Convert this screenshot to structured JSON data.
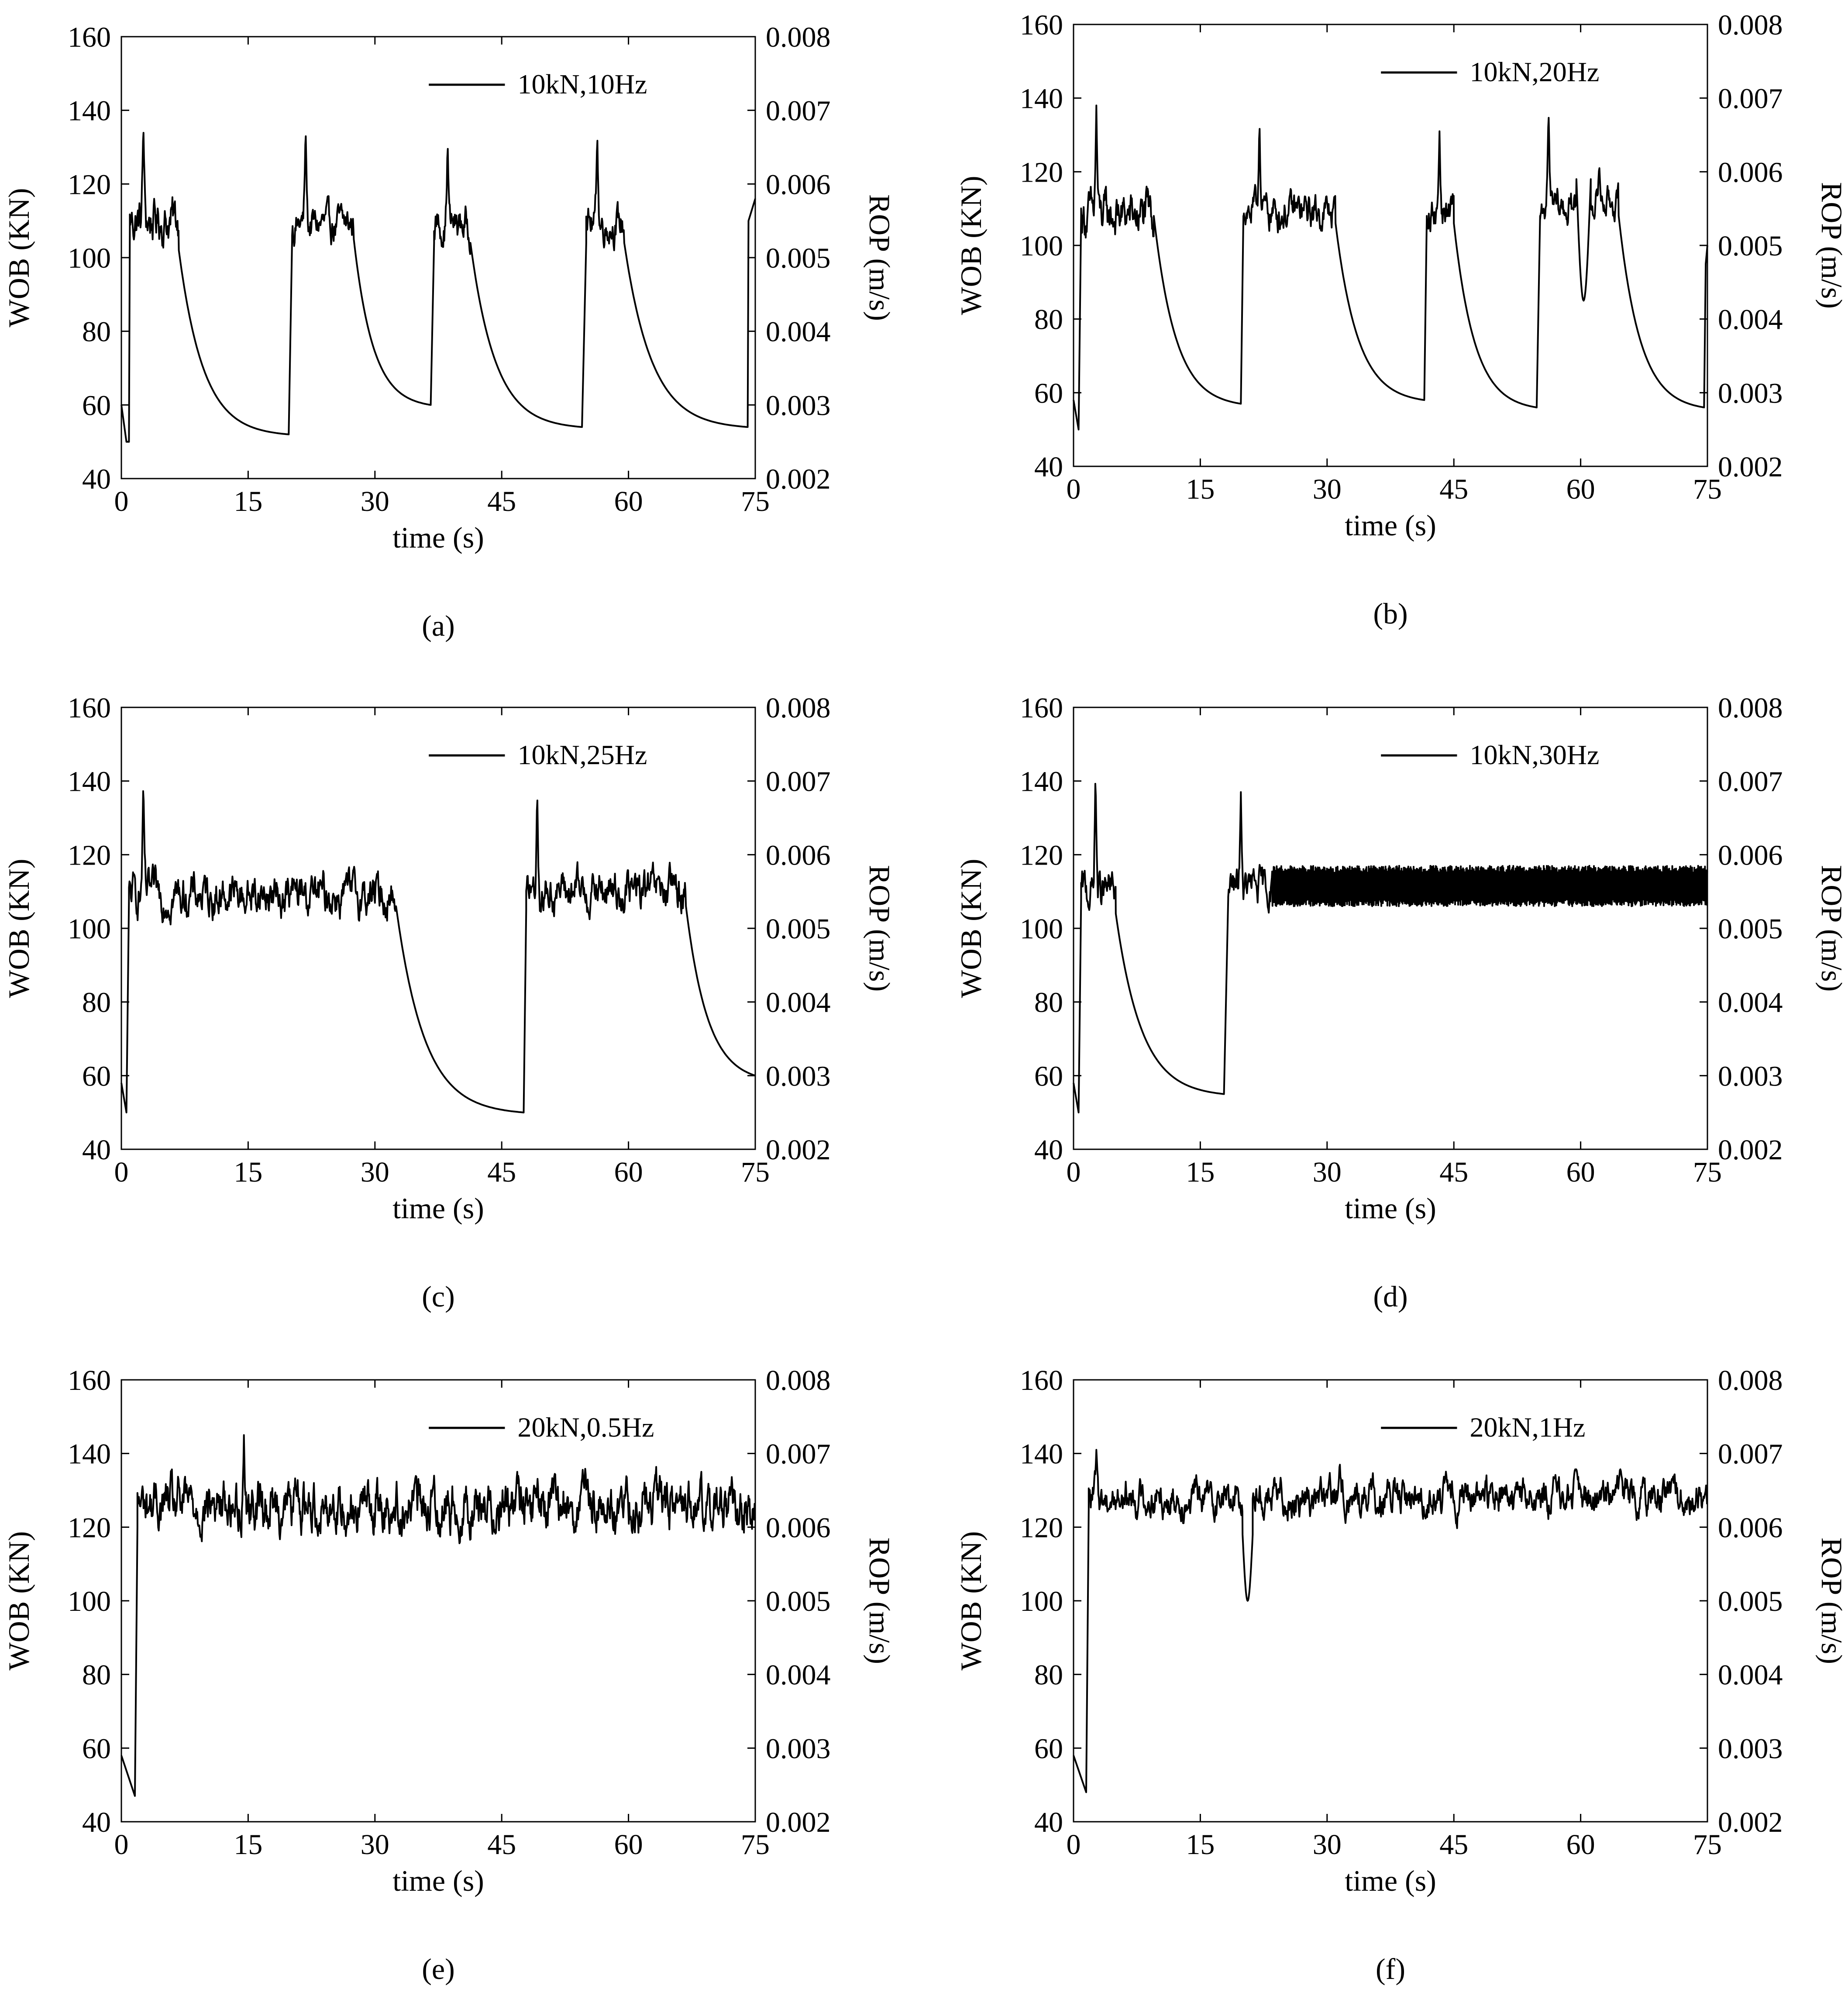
{
  "chart_data": [
    {
      "type": "line",
      "panel_label": "(a)",
      "legend": "10kN,10Hz",
      "xlabel": "time (s)",
      "ylabel": "WOB (KN)",
      "ylabel_right": "ROP (m/s)",
      "xlim": [
        0,
        75
      ],
      "ylim": [
        40,
        160
      ],
      "ylim_right": [
        0.002,
        0.008
      ],
      "x_ticks": [
        "0",
        "15",
        "30",
        "45",
        "60",
        "75"
      ],
      "y_ticks": [
        "40",
        "60",
        "80",
        "100",
        "120",
        "140",
        "160"
      ],
      "y_right_ticks": [
        "0.002",
        "0.003",
        "0.004",
        "0.005",
        "0.006",
        "0.007",
        "0.008"
      ],
      "series": [
        {
          "name": "10kN,10Hz",
          "segments": [
            {
              "kind": "pt",
              "x": 0,
              "y": 60
            },
            {
              "kind": "pt",
              "x": 0.6,
              "y": 50
            },
            {
              "kind": "pt",
              "x": 0.9,
              "y": 50
            },
            {
              "kind": "rise",
              "x": 1.0,
              "to": 108
            },
            {
              "kind": "noisy",
              "x0": 1.0,
              "x1": 6.8,
              "mean": 110,
              "amp": 9,
              "spike_x": 2.6,
              "spike_y": 137
            },
            {
              "kind": "decay",
              "x0": 6.8,
              "x1": 19.8,
              "y0": 102,
              "y1": 52,
              "k": 4.5
            },
            {
              "kind": "rise",
              "x": 20.2,
              "to": 105
            },
            {
              "kind": "noisy",
              "x0": 20.2,
              "x1": 27.5,
              "mean": 109,
              "amp": 7,
              "spike_x": 21.8,
              "spike_y": 136
            },
            {
              "kind": "decay",
              "x0": 27.5,
              "x1": 36.6,
              "y0": 105,
              "y1": 60,
              "k": 4.0
            },
            {
              "kind": "rise",
              "x": 37.0,
              "to": 104
            },
            {
              "kind": "noisy",
              "x0": 37.0,
              "x1": 41.3,
              "mean": 109,
              "amp": 7,
              "spike_x": 38.6,
              "spike_y": 132
            },
            {
              "kind": "decay",
              "x0": 41.3,
              "x1": 54.5,
              "y0": 104,
              "y1": 54,
              "k": 4.5
            },
            {
              "kind": "rise",
              "x": 55.0,
              "to": 104
            },
            {
              "kind": "noisy",
              "x0": 55.0,
              "x1": 59.5,
              "mean": 109,
              "amp": 7,
              "spike_x": 56.3,
              "spike_y": 135
            },
            {
              "kind": "decay",
              "x0": 59.5,
              "x1": 74.1,
              "y0": 104,
              "y1": 54,
              "k": 4.5
            },
            {
              "kind": "rise",
              "x": 74.2,
              "to": 110
            },
            {
              "kind": "pt",
              "x": 75,
              "y": 116
            }
          ]
        }
      ]
    },
    {
      "type": "line",
      "panel_label": "(b)",
      "legend": "10kN,20Hz",
      "xlabel": "time (s)",
      "ylabel": "WOB (KN)",
      "ylabel_right": "ROP (m/s)",
      "xlim": [
        0,
        75
      ],
      "ylim": [
        40,
        160
      ],
      "ylim_right": [
        0.002,
        0.008
      ],
      "x_ticks": [
        "0",
        "15",
        "30",
        "45",
        "60",
        "75"
      ],
      "y_ticks": [
        "40",
        "60",
        "80",
        "100",
        "120",
        "140",
        "160"
      ],
      "y_right_ticks": [
        "0.002",
        "0.003",
        "0.004",
        "0.005",
        "0.006",
        "0.007",
        "0.008"
      ],
      "series": [
        {
          "name": "10kN,20Hz",
          "segments": [
            {
              "kind": "pt",
              "x": 0,
              "y": 58
            },
            {
              "kind": "pt",
              "x": 0.6,
              "y": 50
            },
            {
              "kind": "rise",
              "x": 0.9,
              "to": 108
            },
            {
              "kind": "noisy",
              "x0": 0.9,
              "x1": 9.5,
              "mean": 108,
              "amp": 9,
              "spike_x": 2.7,
              "spike_y": 138
            },
            {
              "kind": "decay",
              "x0": 9.5,
              "x1": 19.8,
              "y0": 108,
              "y1": 57,
              "k": 4.0
            },
            {
              "kind": "rise",
              "x": 20.1,
              "to": 108
            },
            {
              "kind": "noisy",
              "x0": 20.1,
              "x1": 31.0,
              "mean": 109,
              "amp": 7,
              "spike_x": 22.0,
              "spike_y": 135
            },
            {
              "kind": "decay",
              "x0": 31.0,
              "x1": 41.5,
              "y0": 106,
              "y1": 58,
              "k": 4.0
            },
            {
              "kind": "rise",
              "x": 41.8,
              "to": 108
            },
            {
              "kind": "noisy",
              "x0": 41.8,
              "x1": 45.0,
              "mean": 109,
              "amp": 7,
              "spike_x": 43.3,
              "spike_y": 131
            },
            {
              "kind": "decay",
              "x0": 45.0,
              "x1": 54.8,
              "y0": 106,
              "y1": 56,
              "k": 4.0
            },
            {
              "kind": "rise",
              "x": 55.2,
              "to": 108
            },
            {
              "kind": "noisy",
              "x0": 55.2,
              "x1": 59.5,
              "mean": 110,
              "amp": 7,
              "spike_x": 56.2,
              "spike_y": 137
            },
            {
              "kind": "dip",
              "x0": 59.5,
              "x1": 61.2,
              "y": 85
            },
            {
              "kind": "noisy",
              "x0": 61.2,
              "x1": 64.5,
              "mean": 112,
              "amp": 6,
              "spike_x": 62.2,
              "spike_y": 122
            },
            {
              "kind": "decay",
              "x0": 64.5,
              "x1": 74.6,
              "y0": 108,
              "y1": 56,
              "k": 4.0
            },
            {
              "kind": "rise",
              "x": 74.8,
              "to": 95
            },
            {
              "kind": "pt",
              "x": 75,
              "y": 100
            }
          ]
        }
      ]
    },
    {
      "type": "line",
      "panel_label": "(c)",
      "legend": "10kN,25Hz",
      "xlabel": "time (s)",
      "ylabel": "WOB (KN)",
      "ylabel_right": "ROP (m/s)",
      "xlim": [
        0,
        75
      ],
      "ylim": [
        40,
        160
      ],
      "ylim_right": [
        0.002,
        0.008
      ],
      "x_ticks": [
        "0",
        "15",
        "30",
        "45",
        "60",
        "75"
      ],
      "y_ticks": [
        "40",
        "60",
        "80",
        "100",
        "120",
        "140",
        "160"
      ],
      "y_right_ticks": [
        "0.002",
        "0.003",
        "0.004",
        "0.005",
        "0.006",
        "0.007",
        "0.008"
      ],
      "series": [
        {
          "name": "10kN,25Hz",
          "segments": [
            {
              "kind": "pt",
              "x": 0,
              "y": 58
            },
            {
              "kind": "pt",
              "x": 0.6,
              "y": 50
            },
            {
              "kind": "rise",
              "x": 0.9,
              "to": 108
            },
            {
              "kind": "noisy",
              "x0": 0.9,
              "x1": 32.5,
              "mean": 109,
              "amp": 8,
              "spike_x": 2.6,
              "spike_y": 140
            },
            {
              "kind": "decay",
              "x0": 32.5,
              "x1": 47.6,
              "y0": 106,
              "y1": 50,
              "k": 4.5
            },
            {
              "kind": "rise",
              "x": 47.9,
              "to": 105
            },
            {
              "kind": "noisy",
              "x0": 47.9,
              "x1": 66.8,
              "mean": 110,
              "amp": 8,
              "spike_x": 49.2,
              "spike_y": 138
            },
            {
              "kind": "decay",
              "x0": 66.8,
              "x1": 75.0,
              "y0": 106,
              "y1": 60,
              "k": 3.2
            }
          ]
        }
      ]
    },
    {
      "type": "line",
      "panel_label": "(d)",
      "legend": "10kN,30Hz",
      "xlabel": "time (s)",
      "ylabel": "WOB (KN)",
      "ylabel_right": "ROP (m/s)",
      "xlim": [
        0,
        75
      ],
      "ylim": [
        40,
        160
      ],
      "ylim_right": [
        0.002,
        0.008
      ],
      "x_ticks": [
        "0",
        "15",
        "30",
        "45",
        "60",
        "75"
      ],
      "y_ticks": [
        "40",
        "60",
        "80",
        "100",
        "120",
        "140",
        "160"
      ],
      "y_right_ticks": [
        "0.002",
        "0.003",
        "0.004",
        "0.005",
        "0.006",
        "0.007",
        "0.008"
      ],
      "series": [
        {
          "name": "10kN,30Hz",
          "segments": [
            {
              "kind": "pt",
              "x": 0,
              "y": 58
            },
            {
              "kind": "pt",
              "x": 0.6,
              "y": 50
            },
            {
              "kind": "rise",
              "x": 0.9,
              "to": 108
            },
            {
              "kind": "noisy",
              "x0": 0.9,
              "x1": 5.0,
              "mean": 110,
              "amp": 8,
              "spike_x": 2.6,
              "spike_y": 143
            },
            {
              "kind": "decay",
              "x0": 5.0,
              "x1": 17.8,
              "y0": 104,
              "y1": 55,
              "k": 4.2
            },
            {
              "kind": "rise",
              "x": 18.3,
              "to": 108
            },
            {
              "kind": "noisy",
              "x0": 18.3,
              "x1": 23.5,
              "mean": 111,
              "amp": 7,
              "spike_x": 19.8,
              "spike_y": 137
            },
            {
              "kind": "band",
              "x0": 23.5,
              "x1": 75.0,
              "lo": 106,
              "hi": 117
            }
          ]
        }
      ]
    },
    {
      "type": "line",
      "panel_label": "(e)",
      "legend": "20kN,0.5Hz",
      "xlabel": "time (s)",
      "ylabel": "WOB (KN)",
      "ylabel_right": "ROP (m/s)",
      "xlim": [
        0,
        75
      ],
      "ylim": [
        40,
        160
      ],
      "ylim_right": [
        0.002,
        0.008
      ],
      "x_ticks": [
        "0",
        "15",
        "30",
        "45",
        "60",
        "75"
      ],
      "y_ticks": [
        "40",
        "60",
        "80",
        "100",
        "120",
        "140",
        "160"
      ],
      "y_right_ticks": [
        "0.002",
        "0.003",
        "0.004",
        "0.005",
        "0.006",
        "0.007",
        "0.008"
      ],
      "series": [
        {
          "name": "20kN,0.5Hz",
          "segments": [
            {
              "kind": "pt",
              "x": 0,
              "y": 58
            },
            {
              "kind": "pt",
              "x": 1.6,
              "y": 47
            },
            {
              "kind": "rise",
              "x": 1.9,
              "to": 120
            },
            {
              "kind": "noisy",
              "x0": 1.9,
              "x1": 75.0,
              "mean": 126,
              "amp": 10,
              "spike_x": 14.5,
              "spike_y": 145
            }
          ]
        }
      ]
    },
    {
      "type": "line",
      "panel_label": "(f)",
      "legend": "20kN,1Hz",
      "xlabel": "time (s)",
      "ylabel": "WOB (KN)",
      "ylabel_right": "ROP (m/s)",
      "xlim": [
        0,
        75
      ],
      "ylim": [
        40,
        160
      ],
      "ylim_right": [
        0.002,
        0.008
      ],
      "x_ticks": [
        "0",
        "15",
        "30",
        "45",
        "60",
        "75"
      ],
      "y_ticks": [
        "40",
        "60",
        "80",
        "100",
        "120",
        "140",
        "160"
      ],
      "y_right_ticks": [
        "0.002",
        "0.003",
        "0.004",
        "0.005",
        "0.006",
        "0.007",
        "0.008"
      ],
      "series": [
        {
          "name": "20kN,1Hz",
          "segments": [
            {
              "kind": "pt",
              "x": 0,
              "y": 58
            },
            {
              "kind": "pt",
              "x": 1.5,
              "y": 48
            },
            {
              "kind": "rise",
              "x": 1.8,
              "to": 125
            },
            {
              "kind": "noisy",
              "x0": 1.8,
              "x1": 20.0,
              "mean": 128,
              "amp": 7,
              "spike_x": 2.7,
              "spike_y": 141
            },
            {
              "kind": "dip",
              "x0": 20.0,
              "x1": 21.2,
              "y": 100
            },
            {
              "kind": "noisy",
              "x0": 21.2,
              "x1": 75.0,
              "mean": 128,
              "amp": 7,
              "spike_x": 31.5,
              "spike_y": 138
            }
          ]
        }
      ]
    }
  ]
}
